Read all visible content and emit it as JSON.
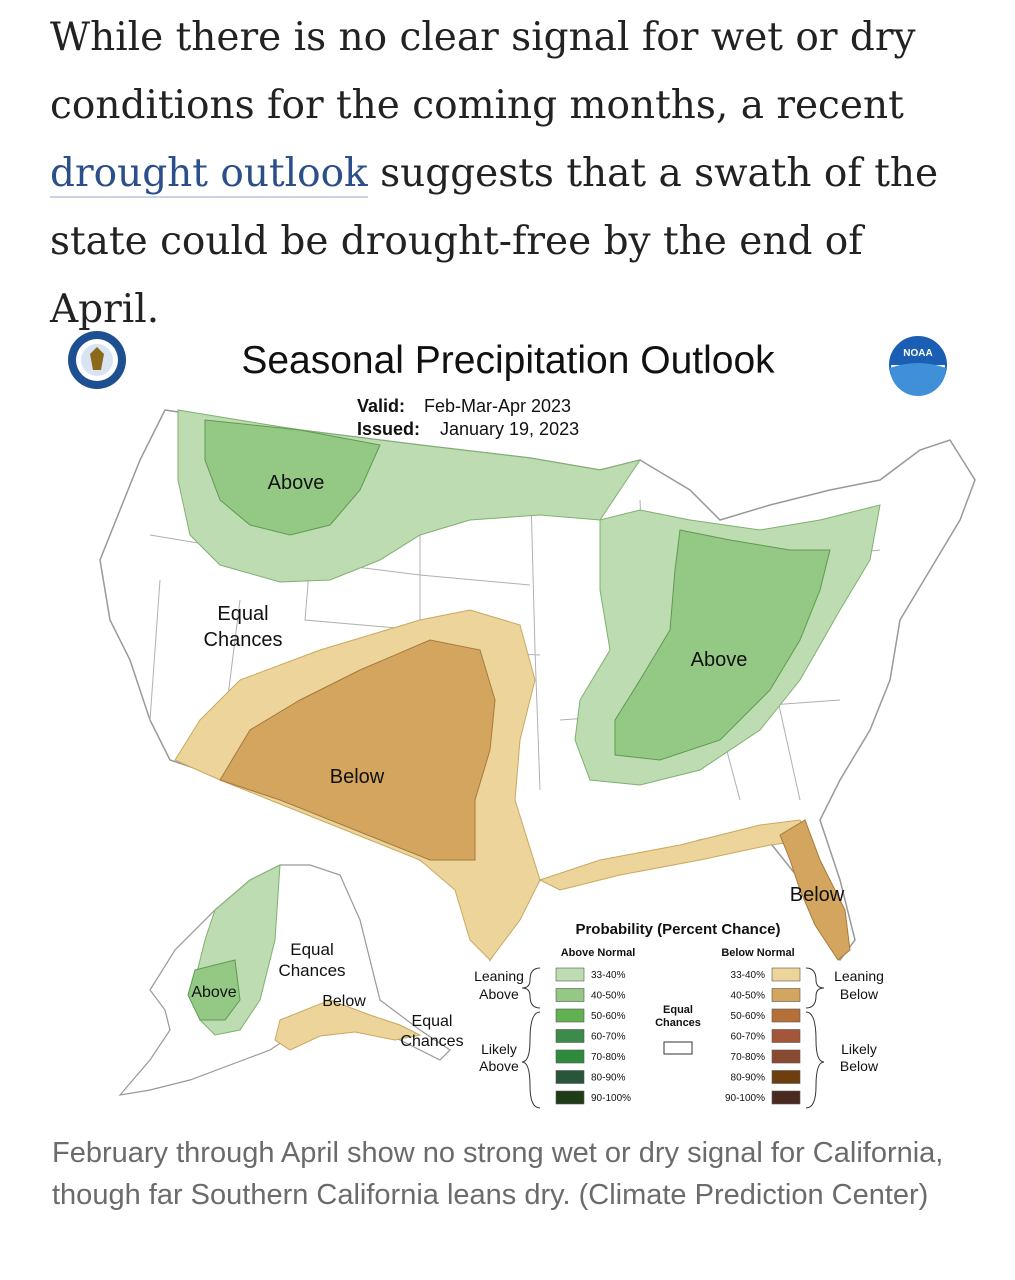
{
  "article": {
    "before_link": "While there is no clear signal for wet or dry conditions for the coming months, a recent ",
    "link_text": "drought outlook",
    "after_link": " suggests that a swath of the state could be drought-free by the end of April."
  },
  "map": {
    "title": "Seasonal Precipitation Outlook",
    "valid_label": "Valid:",
    "valid_value": "Feb-Mar-Apr 2023",
    "issued_label": "Issued:",
    "issued_value": "January 19, 2023",
    "logo_right_text": "NOAA",
    "region_labels": {
      "above_north": "Above",
      "equal_west_1": "Equal",
      "equal_west_2": "Chances",
      "below_southwest": "Below",
      "above_east": "Above",
      "below_florida": "Below",
      "alaska_above": "Above",
      "alaska_equal_1": "Equal",
      "alaska_equal_2": "Chances",
      "alaska_below": "Below",
      "alaska_equal_se_1": "Equal",
      "alaska_equal_se_2": "Chances"
    },
    "colors": {
      "above_33_40": "#bddcb1",
      "above_40_50": "#94c985",
      "above_50_60": "#62b150",
      "above_60_70": "#3d8b4a",
      "above_70_80": "#2e8b3c",
      "above_80_90": "#29553a",
      "above_90_100": "#1f3b17",
      "below_33_40": "#ecd49a",
      "below_40_50": "#d3a55f",
      "below_50_60": "#b5703a",
      "below_60_70": "#a4563a",
      "below_70_80": "#8a4a32",
      "below_80_90": "#6f3e0f",
      "below_90_100": "#4a2a20",
      "equal": "#ffffff",
      "state_lines": "#aaaaaa"
    }
  },
  "legend": {
    "title": "Probability (Percent Chance)",
    "above_header": "Above Normal",
    "below_header": "Below Normal",
    "leaning_above_1": "Leaning",
    "leaning_above_2": "Above",
    "likely_above_1": "Likely",
    "likely_above_2": "Above",
    "leaning_below_1": "Leaning",
    "leaning_below_2": "Below",
    "likely_below_1": "Likely",
    "likely_below_2": "Below",
    "equal_1": "Equal",
    "equal_2": "Chances",
    "ranges": [
      "33-40%",
      "40-50%",
      "50-60%",
      "60-70%",
      "70-80%",
      "80-90%",
      "90-100%"
    ]
  },
  "caption": "February through April show no strong wet or dry signal for California, though far Southern California leans dry. (Climate Prediction Center)"
}
